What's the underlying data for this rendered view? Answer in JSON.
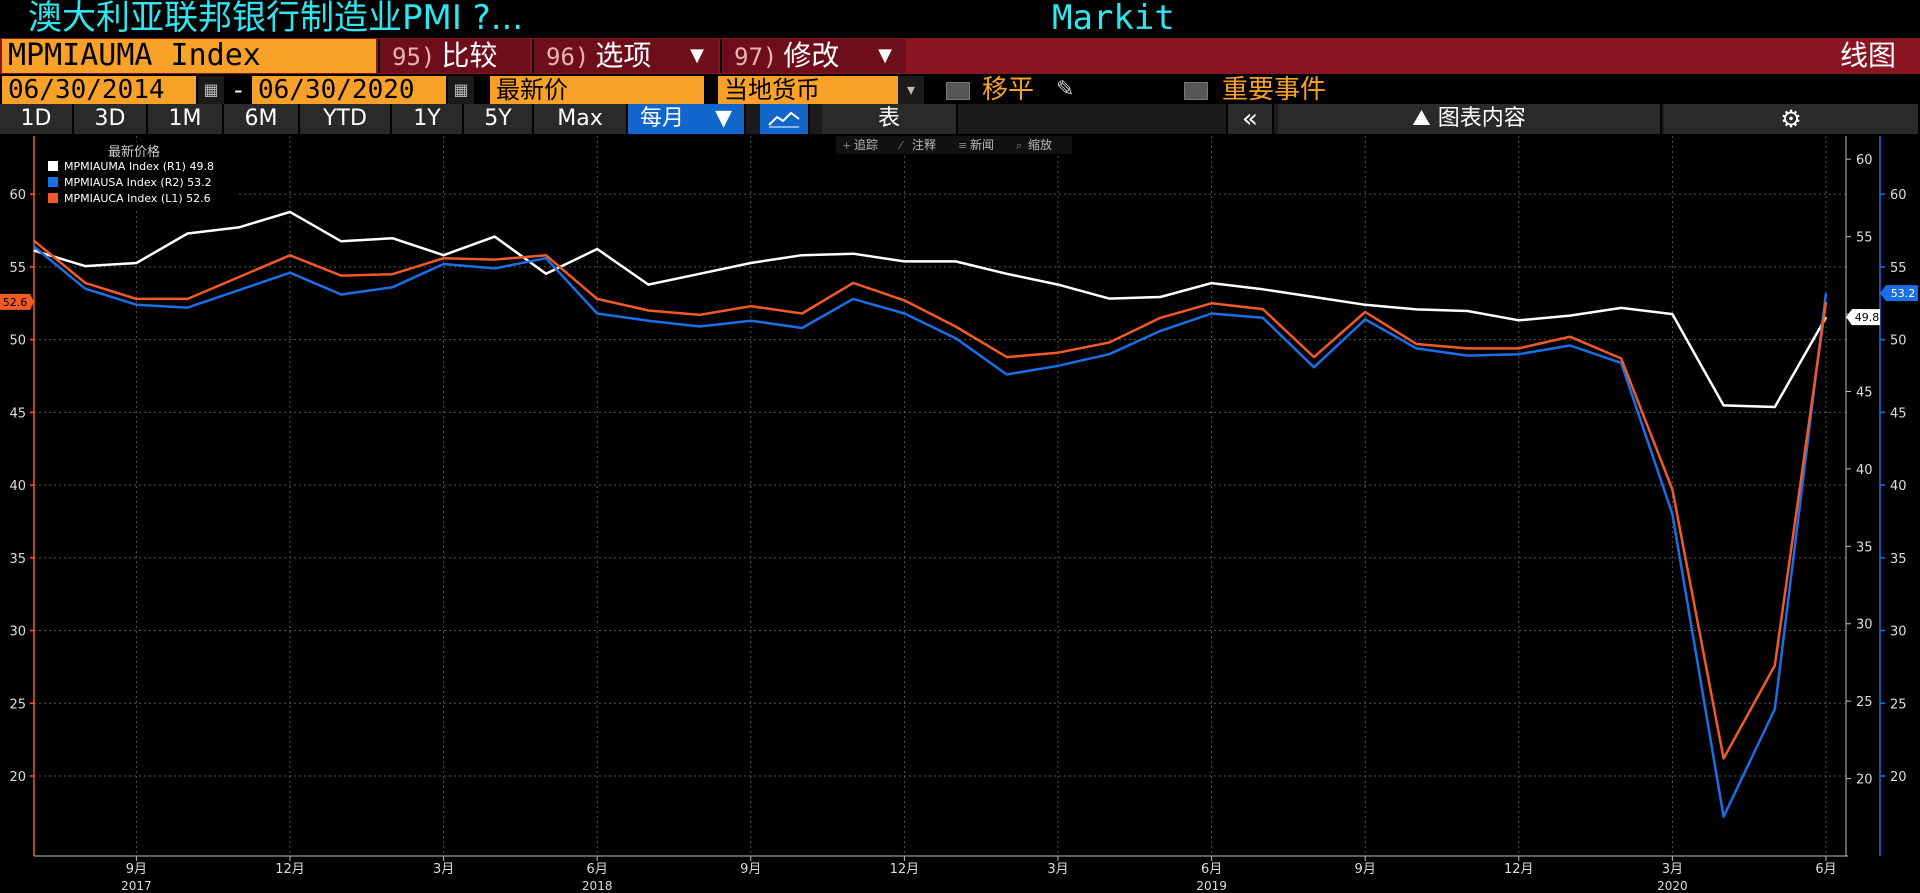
{
  "header": {
    "title": "澳大利亚联邦银行制造业PMI ?...",
    "source": "Markit",
    "ticker": "MPMIAUMA Index",
    "chart_type_label": "线图",
    "commands": [
      {
        "num": "95)",
        "label": "比较",
        "dropdown": false
      },
      {
        "num": "96)",
        "label": "选项",
        "dropdown": true
      },
      {
        "num": "97)",
        "label": "修改",
        "dropdown": true
      }
    ]
  },
  "controls": {
    "start_date": "06/30/2014",
    "date_sep": "-",
    "end_date": "06/30/2020",
    "field": "最新价",
    "currency": "当地货币",
    "moving_avg_label": "移平",
    "events_label": "重要事件"
  },
  "periods": {
    "buttons": [
      "1D",
      "3D",
      "1M",
      "6M",
      "YTD",
      "1Y",
      "5Y",
      "Max"
    ],
    "frequency": "每月",
    "table_label": "表",
    "chart_content_label": "图表内容"
  },
  "toolbar": {
    "track": "追踪",
    "annotate": "注释",
    "news": "新闻",
    "zoom": "缩放"
  },
  "chart_data": {
    "type": "line",
    "legend_title": "最新价格",
    "x": [
      "2016-07",
      "2016-08",
      "2016-09",
      "2016-10",
      "2016-11",
      "2016-12",
      "2017-01",
      "2017-02",
      "2017-03",
      "2017-04",
      "2017-05",
      "2017-06",
      "2017-07",
      "2017-08",
      "2017-09",
      "2017-10",
      "2017-11",
      "2017-12",
      "2018-01",
      "2018-02",
      "2018-03",
      "2018-04",
      "2018-05",
      "2018-06",
      "2018-07",
      "2018-08",
      "2018-09",
      "2018-10",
      "2018-11",
      "2018-12",
      "2019-01",
      "2019-02",
      "2019-03",
      "2019-04",
      "2019-05",
      "2019-06"
    ],
    "x_ticks": [
      {
        "at": "2016-09",
        "label": "9月"
      },
      {
        "at": "2016-12",
        "label": "12月"
      },
      {
        "at": "2017-03",
        "label": "3月"
      },
      {
        "at": "2017-06",
        "label": "6月"
      },
      {
        "at": "2017-09",
        "label": "9月"
      },
      {
        "at": "2017-12",
        "label": "12月"
      },
      {
        "at": "2018-03",
        "label": "3月"
      },
      {
        "at": "2018-06",
        "label": "6月"
      },
      {
        "at": "2018-09",
        "label": "9月"
      },
      {
        "at": "2018-12",
        "label": "12月"
      },
      {
        "at": "2019-03",
        "label": "3月"
      },
      {
        "at": "2019-06",
        "label": "6月"
      }
    ],
    "year_labels": [
      {
        "at": "2016-09",
        "label": "2017"
      },
      {
        "at": "2017-06",
        "label": "2018"
      },
      {
        "at": "2018-06",
        "label": "2019"
      },
      {
        "at": "2019-03",
        "label": "2020"
      }
    ],
    "left_axis": {
      "ticks": [
        20,
        25,
        30,
        35,
        40,
        45,
        50,
        55,
        60
      ],
      "ylim": [
        14.5,
        64
      ]
    },
    "r1_axis": {
      "ticks": [
        20,
        25,
        30,
        35,
        40,
        45,
        50,
        55,
        60
      ],
      "ylim": [
        15,
        61.5
      ]
    },
    "r2_axis": {
      "ticks": [
        20,
        25,
        30,
        35,
        40,
        45,
        50,
        55,
        60
      ],
      "ylim": [
        14.5,
        64
      ]
    },
    "grid": true,
    "legend_position": "top-left",
    "series": [
      {
        "name": "MPMIAUMA Index",
        "axis": "R1",
        "last": "49.8",
        "color": "#ffffff",
        "values": [
          54.1,
          53.1,
          53.3,
          55.2,
          55.6,
          56.6,
          54.7,
          54.9,
          53.8,
          55.0,
          52.6,
          54.2,
          51.9,
          52.6,
          53.3,
          53.8,
          53.9,
          53.4,
          53.4,
          52.6,
          51.9,
          51.0,
          51.1,
          52.0,
          51.6,
          51.1,
          50.6,
          50.3,
          50.2,
          49.6,
          49.9,
          50.4,
          50.0,
          44.1,
          44.0,
          49.8
        ]
      },
      {
        "name": "MPMIAUSA Index",
        "axis": "R2",
        "last": "53.2",
        "color": "#1a6fe6",
        "values": [
          56.4,
          53.5,
          52.4,
          52.2,
          53.4,
          54.6,
          53.1,
          53.6,
          55.2,
          54.9,
          55.6,
          51.8,
          51.3,
          50.9,
          51.3,
          50.8,
          52.8,
          51.8,
          50.1,
          47.6,
          48.2,
          49.0,
          50.6,
          51.8,
          51.5,
          48.1,
          51.4,
          49.4,
          48.9,
          49.0,
          49.6,
          48.4,
          38.0,
          17.2,
          24.6,
          53.2
        ]
      },
      {
        "name": "MPMIAUCA Index",
        "axis": "L1",
        "last": "52.6",
        "color": "#f05a28",
        "values": [
          56.8,
          53.9,
          52.8,
          52.8,
          54.3,
          55.8,
          54.4,
          54.5,
          55.6,
          55.5,
          55.8,
          52.8,
          52.0,
          51.7,
          52.3,
          51.8,
          53.9,
          52.7,
          50.9,
          48.8,
          49.1,
          49.8,
          51.5,
          52.5,
          52.1,
          48.8,
          51.9,
          49.7,
          49.4,
          49.4,
          50.2,
          48.7,
          39.7,
          21.2,
          27.6,
          52.6
        ]
      }
    ]
  }
}
